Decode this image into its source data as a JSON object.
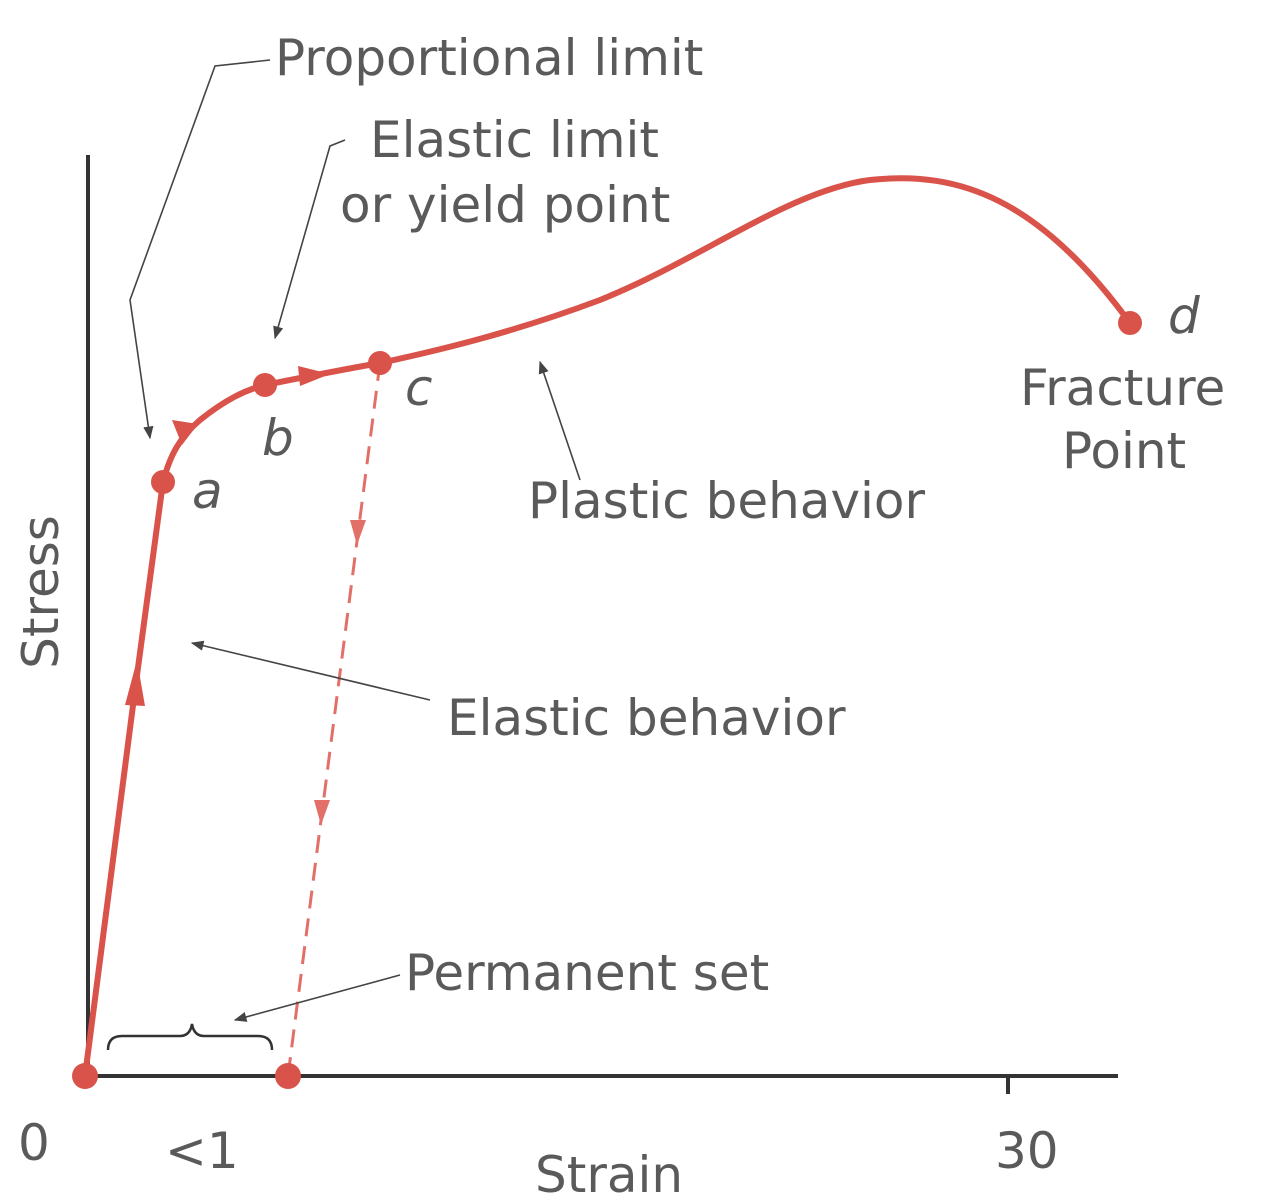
{
  "axes": {
    "y_label": "Stress",
    "x_label": "Strain",
    "x_ticks": [
      "0",
      "<1",
      "30"
    ]
  },
  "points": [
    {
      "label": "a"
    },
    {
      "label": "b"
    },
    {
      "label": "c"
    },
    {
      "label": "d"
    }
  ],
  "annotations": {
    "proportional_limit": "Proportional limit",
    "elastic_limit": [
      "Elastic limit",
      "or yield point"
    ],
    "plastic_behavior": "Plastic behavior",
    "elastic_behavior": "Elastic behavior",
    "permanent_set": "Permanent set",
    "fracture_point": [
      "Fracture",
      "Point"
    ]
  }
}
